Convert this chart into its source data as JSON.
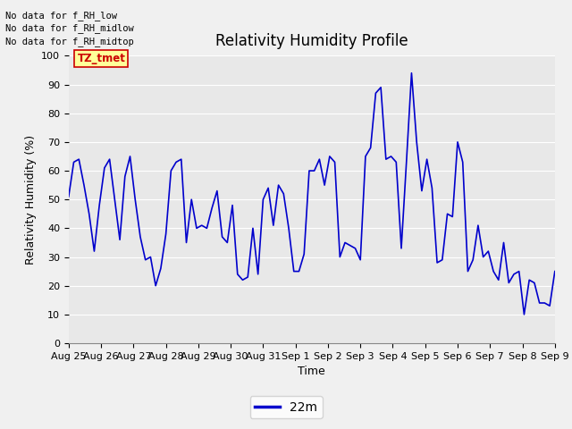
{
  "title": "Relativity Humidity Profile",
  "xlabel": "Time",
  "ylabel": "Relativity Humidity (%)",
  "legend_label": "22m",
  "line_color": "#0000cc",
  "line_width": 1.2,
  "plot_bg_color": "#e8e8e8",
  "fig_bg_color": "#f0f0f0",
  "ylim": [
    0,
    100
  ],
  "yticks": [
    0,
    10,
    20,
    30,
    40,
    50,
    60,
    70,
    80,
    90,
    100
  ],
  "no_data_texts": [
    "No data for f_RH_low",
    "No data for f_RH_midlow",
    "No data for f_RH_midtop"
  ],
  "tz_tmet_label": "TZ_tmet",
  "x_tick_labels": [
    "Aug 25",
    "Aug 26",
    "Aug 27",
    "Aug 28",
    "Aug 29",
    "Aug 30",
    "Aug 31",
    "Sep 1",
    "Sep 2",
    "Sep 3",
    "Sep 4",
    "Sep 5",
    "Sep 6",
    "Sep 7",
    "Sep 8",
    "Sep 9"
  ],
  "y_values": [
    51,
    63,
    64,
    55,
    45,
    32,
    48,
    61,
    64,
    50,
    36,
    58,
    65,
    50,
    37,
    29,
    30,
    20,
    26,
    38,
    60,
    63,
    64,
    35,
    50,
    40,
    41,
    40,
    47,
    53,
    37,
    35,
    48,
    24,
    22,
    23,
    40,
    24,
    50,
    54,
    41,
    55,
    52,
    40,
    25,
    25,
    31,
    60,
    60,
    64,
    55,
    65,
    63,
    30,
    35,
    34,
    33,
    29,
    65,
    68,
    87,
    89,
    64,
    65,
    63,
    33,
    63,
    94,
    70,
    53,
    64,
    54,
    28,
    29,
    45,
    44,
    70,
    63,
    25,
    29,
    41,
    30,
    32,
    25,
    22,
    35,
    21,
    24,
    25,
    10,
    22,
    21,
    14,
    14,
    13,
    25
  ],
  "title_fontsize": 12,
  "axis_label_fontsize": 9,
  "tick_fontsize": 8,
  "legend_fontsize": 10
}
